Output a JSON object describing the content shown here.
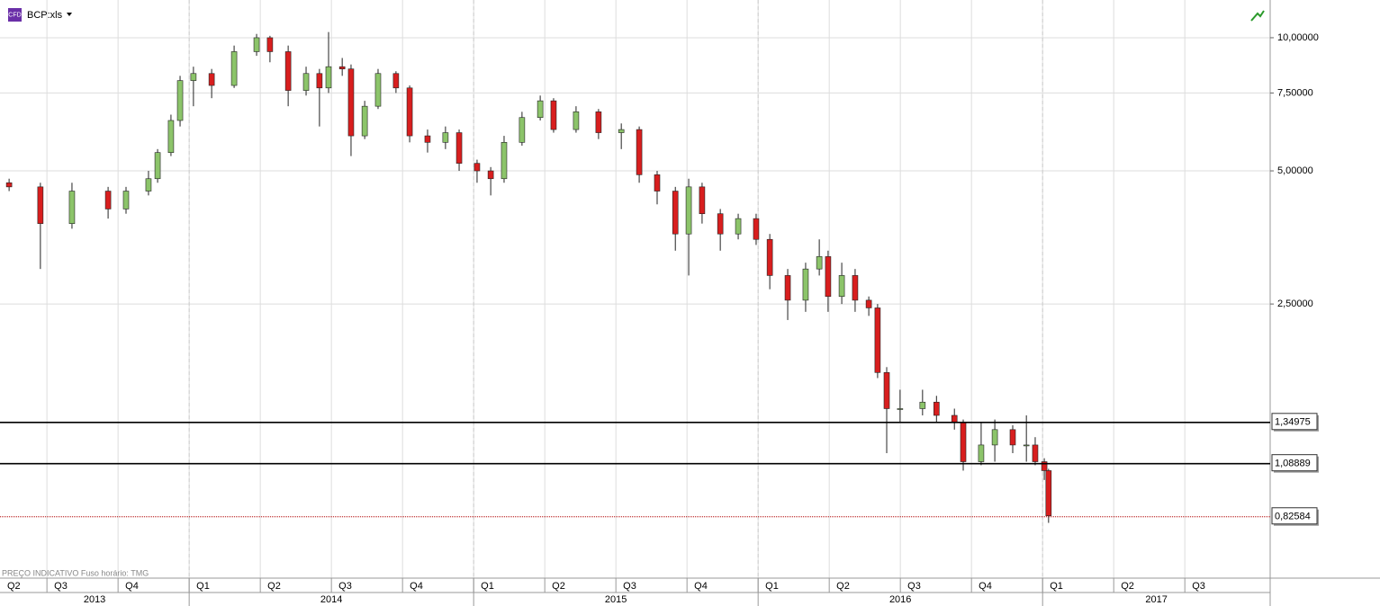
{
  "header": {
    "badge": "CFD",
    "symbol": "BCP:xls"
  },
  "footer_note": "PREÇO INDICATIVO   Fuso horário: TMG",
  "chart_data": {
    "type": "candlestick",
    "log_scale": true,
    "grid": true,
    "up_color": "#8cc46a",
    "down_color": "#d81e1e",
    "x": [
      2013.367,
      2013.477,
      2013.588,
      2013.715,
      2013.778,
      2013.857,
      2013.889,
      2013.936,
      2013.968,
      2014.015,
      2014.079,
      2014.158,
      2014.237,
      2014.284,
      2014.348,
      2014.411,
      2014.458,
      2014.49,
      2014.538,
      2014.569,
      2014.617,
      2014.664,
      2014.727,
      2014.775,
      2014.838,
      2014.901,
      2014.949,
      2015.012,
      2015.06,
      2015.107,
      2015.17,
      2015.234,
      2015.281,
      2015.36,
      2015.439,
      2015.519,
      2015.582,
      2015.645,
      2015.709,
      2015.756,
      2015.803,
      2015.867,
      2015.93,
      2015.993,
      2016.041,
      2016.104,
      2016.167,
      2016.215,
      2016.246,
      2016.294,
      2016.341,
      2016.389,
      2016.42,
      2016.452,
      2016.499,
      2016.578,
      2016.627,
      2016.69,
      2016.721,
      2016.784,
      2016.832,
      2016.895,
      2016.943,
      2016.974,
      2017.006,
      2017.021
    ],
    "open": [
      4.7,
      4.6,
      3.8,
      4.5,
      4.1,
      4.5,
      4.8,
      5.5,
      6.5,
      8.0,
      8.3,
      7.8,
      9.3,
      10.0,
      9.3,
      7.6,
      8.3,
      7.7,
      8.6,
      8.5,
      6.0,
      7.0,
      8.3,
      7.7,
      6.0,
      5.8,
      6.1,
      5.2,
      5.0,
      4.8,
      5.8,
      6.6,
      7.2,
      6.2,
      6.8,
      6.1,
      6.2,
      4.9,
      4.5,
      3.6,
      4.6,
      4.0,
      3.6,
      3.9,
      3.5,
      2.9,
      2.55,
      3.0,
      3.2,
      2.6,
      2.9,
      2.55,
      2.45,
      1.75,
      1.45,
      1.45,
      1.5,
      1.4,
      1.35,
      1.1,
      1.2,
      1.3,
      1.2,
      1.2,
      1.1,
      1.05
    ],
    "high": [
      4.8,
      4.7,
      4.7,
      4.6,
      4.6,
      5.0,
      5.6,
      6.7,
      8.2,
      8.6,
      8.5,
      9.6,
      10.2,
      10.1,
      9.6,
      8.6,
      8.5,
      10.3,
      9.0,
      8.7,
      7.2,
      8.5,
      8.4,
      7.8,
      6.2,
      6.3,
      6.2,
      5.3,
      5.1,
      6.0,
      6.8,
      7.4,
      7.3,
      7.0,
      6.9,
      6.4,
      6.3,
      5.0,
      4.6,
      4.8,
      4.7,
      4.1,
      4.0,
      4.0,
      3.6,
      3.0,
      3.1,
      3.5,
      3.3,
      3.1,
      3.0,
      2.6,
      2.5,
      1.8,
      1.6,
      1.6,
      1.55,
      1.45,
      1.37,
      1.35,
      1.37,
      1.33,
      1.4,
      1.25,
      1.12,
      1.06
    ],
    "low": [
      4.5,
      3.0,
      3.7,
      3.9,
      4.0,
      4.4,
      4.7,
      5.4,
      6.3,
      7.0,
      7.3,
      7.7,
      9.1,
      8.8,
      7.0,
      7.4,
      6.3,
      7.5,
      8.2,
      5.4,
      5.9,
      6.9,
      7.5,
      5.8,
      5.5,
      5.6,
      5.0,
      4.7,
      4.4,
      4.7,
      5.7,
      6.5,
      6.1,
      6.1,
      5.9,
      5.6,
      4.7,
      4.2,
      3.3,
      2.9,
      3.8,
      3.3,
      3.5,
      3.4,
      2.7,
      2.3,
      2.4,
      2.9,
      2.4,
      2.5,
      2.4,
      2.35,
      1.7,
      1.15,
      1.35,
      1.4,
      1.35,
      1.3,
      1.05,
      1.08,
      1.1,
      1.15,
      1.1,
      1.08,
      1.0,
      0.8
    ],
    "close": [
      4.6,
      3.8,
      4.5,
      4.1,
      4.5,
      4.8,
      5.5,
      6.5,
      8.0,
      8.3,
      7.8,
      9.3,
      10.0,
      9.3,
      7.6,
      8.3,
      7.7,
      8.6,
      8.5,
      6.0,
      7.0,
      8.3,
      7.7,
      6.0,
      5.8,
      6.1,
      5.2,
      5.0,
      4.8,
      5.8,
      6.6,
      7.2,
      6.2,
      6.8,
      6.1,
      6.2,
      4.9,
      4.5,
      3.6,
      4.6,
      4.0,
      3.6,
      3.9,
      3.5,
      2.9,
      2.55,
      3.0,
      3.2,
      2.6,
      2.9,
      2.55,
      2.45,
      1.75,
      1.45,
      1.45,
      1.5,
      1.4,
      1.35,
      1.1,
      1.2,
      1.3,
      1.2,
      1.2,
      1.1,
      1.05,
      0.83
    ],
    "xlim": [
      2013.335,
      2017.8
    ],
    "ylim": [
      0.6,
      12.17
    ],
    "yticks": [
      {
        "value": 10,
        "label": "10,00000"
      },
      {
        "value": 7.5,
        "label": "7,50000"
      },
      {
        "value": 5,
        "label": "5,00000"
      },
      {
        "value": 2.5,
        "label": "2,50000"
      }
    ],
    "xticks": [
      {
        "value": 2013.25,
        "label": "Q2"
      },
      {
        "value": 2013.5,
        "label": "Q3"
      },
      {
        "value": 2013.75,
        "label": "Q4"
      },
      {
        "value": 2014.0,
        "label": "Q1"
      },
      {
        "value": 2014.25,
        "label": "Q2"
      },
      {
        "value": 2014.5,
        "label": "Q3"
      },
      {
        "value": 2014.75,
        "label": "Q4"
      },
      {
        "value": 2015.0,
        "label": "Q1"
      },
      {
        "value": 2015.25,
        "label": "Q2"
      },
      {
        "value": 2015.5,
        "label": "Q3"
      },
      {
        "value": 2015.75,
        "label": "Q4"
      },
      {
        "value": 2016.0,
        "label": "Q1"
      },
      {
        "value": 2016.25,
        "label": "Q2"
      },
      {
        "value": 2016.5,
        "label": "Q3"
      },
      {
        "value": 2016.75,
        "label": "Q4"
      },
      {
        "value": 2017.0,
        "label": "Q1"
      },
      {
        "value": 2017.25,
        "label": "Q2"
      },
      {
        "value": 2017.5,
        "label": "Q3"
      }
    ],
    "years": [
      2013,
      2014,
      2015,
      2016,
      2017
    ],
    "hlines": [
      {
        "value": 1.34975,
        "label": "1,34975",
        "color": "#000000"
      },
      {
        "value": 1.08889,
        "label": "1,08889",
        "color": "#000000"
      },
      {
        "value": 0.82584,
        "label": "0,82584",
        "color": "#b00000"
      }
    ]
  }
}
